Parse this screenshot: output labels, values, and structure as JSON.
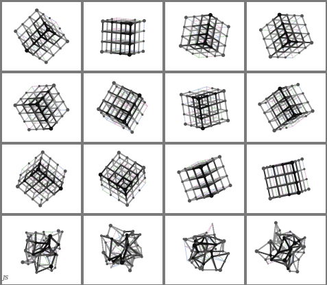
{
  "figure": {
    "rows": 4,
    "cols": 4,
    "colors": {
      "frame": "#7a7a7a",
      "panel": "#ffffff",
      "rod": "#3a3a3a",
      "rod_dark": "#111111",
      "node": "#2a2a2a",
      "tint_pink": "#d8a8c8",
      "tint_green": "#a8d0a0",
      "tint_blue": "#a8b8d8"
    },
    "panels": [
      {
        "name": "lattice-panel-1",
        "kind": "cube",
        "rot": [
          0.35,
          -0.75,
          0.55
        ],
        "noise": 0
      },
      {
        "name": "lattice-panel-2",
        "kind": "cube",
        "rot": [
          0.15,
          0.45,
          0.1
        ],
        "noise": 0
      },
      {
        "name": "lattice-panel-3",
        "kind": "cube",
        "rot": [
          -0.45,
          0.65,
          -0.1
        ],
        "noise": 0
      },
      {
        "name": "lattice-panel-4",
        "kind": "cube",
        "rot": [
          -0.55,
          -0.75,
          0.05
        ],
        "noise": 0
      },
      {
        "name": "lattice-panel-5",
        "kind": "cube",
        "rot": [
          0.62,
          0.78,
          -0.05
        ],
        "noise": 0
      },
      {
        "name": "lattice-panel-6",
        "kind": "cube",
        "rot": [
          -0.2,
          0.4,
          0.45
        ],
        "noise": 0
      },
      {
        "name": "lattice-panel-7",
        "kind": "cube",
        "rot": [
          0.3,
          -0.55,
          -0.3
        ],
        "noise": 0
      },
      {
        "name": "lattice-panel-8",
        "kind": "cube",
        "rot": [
          -0.25,
          0.6,
          -0.65
        ],
        "noise": 0
      },
      {
        "name": "lattice-panel-9",
        "kind": "cube",
        "rot": [
          0.55,
          -0.3,
          0.7
        ],
        "noise": 0
      },
      {
        "name": "lattice-panel-10",
        "kind": "cube",
        "rot": [
          -0.4,
          0.35,
          0.55
        ],
        "noise": 0
      },
      {
        "name": "lattice-panel-11",
        "kind": "cube",
        "rot": [
          0.2,
          -0.8,
          -0.5
        ],
        "noise": 0
      },
      {
        "name": "lattice-panel-12",
        "kind": "cube",
        "rot": [
          0.05,
          0.35,
          -0.2
        ],
        "noise": 0
      },
      {
        "name": "lattice-panel-13",
        "kind": "tangle",
        "rot": [
          0.3,
          0.2,
          0.1
        ],
        "noise": 0.55
      },
      {
        "name": "lattice-panel-14",
        "kind": "tangle",
        "rot": [
          -0.35,
          0.55,
          0.3
        ],
        "noise": 0.65
      },
      {
        "name": "lattice-panel-15",
        "kind": "tangle",
        "rot": [
          0.5,
          -0.3,
          -0.2
        ],
        "noise": 0.6
      },
      {
        "name": "lattice-panel-16",
        "kind": "tangle",
        "rot": [
          -0.2,
          0.7,
          0.4
        ],
        "noise": 0.6
      }
    ],
    "signature": "JS"
  }
}
